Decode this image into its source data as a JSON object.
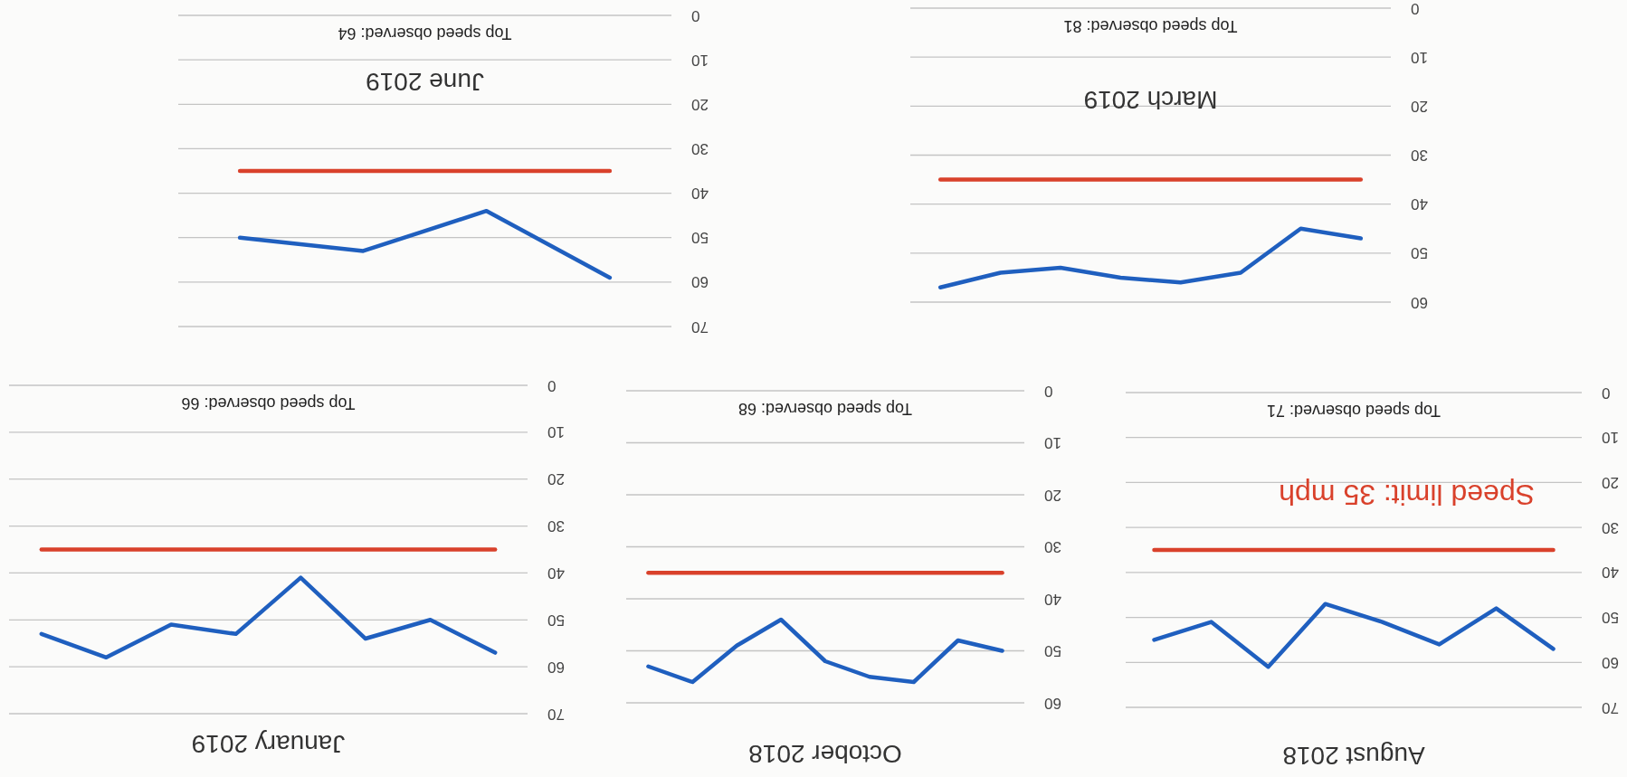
{
  "chart_data": [
    {
      "type": "line",
      "title": "June 2019",
      "categories": [
        null,
        null,
        null,
        null
      ],
      "series": [
        {
          "color": "#1f5fbf",
          "values": [
            50,
            53,
            44,
            59
          ]
        }
      ],
      "ylim": [
        70,
        0
      ],
      "yticks": [
        0,
        10,
        20,
        30,
        40,
        50,
        60,
        70
      ],
      "grid": "y",
      "tick_labels": "y",
      "ref_lines": [
        {
          "axis": "y",
          "value": 35,
          "color": "#d9412b"
        }
      ],
      "annotations": [
        "Top speed observed: 64"
      ]
    },
    {
      "type": "line",
      "title": "March 2019",
      "categories": [
        null,
        null,
        null,
        null,
        null,
        null,
        null,
        null
      ],
      "series": [
        {
          "color": "#1f5fbf",
          "values": [
            57,
            54,
            53,
            55,
            56,
            54,
            45,
            47
          ]
        }
      ],
      "ylim": [
        60,
        0
      ],
      "yticks": [
        0,
        10,
        20,
        30,
        40,
        50,
        60
      ],
      "grid": "y",
      "tick_labels": "y",
      "ref_lines": [
        {
          "axis": "y",
          "value": 35,
          "color": "#d9412b"
        }
      ],
      "annotations": [
        "Top speed observed: 81"
      ]
    },
    {
      "type": "line",
      "title": "January 2019",
      "categories": [
        null,
        null,
        null,
        null,
        null,
        null,
        null,
        null
      ],
      "series": [
        {
          "color": "#1f5fbf",
          "values": [
            53,
            58,
            51,
            53,
            41,
            54,
            50,
            57
          ]
        }
      ],
      "ylim": [
        70,
        0
      ],
      "yticks": [
        0,
        10,
        20,
        30,
        40,
        50,
        60,
        70
      ],
      "grid": "y",
      "tick_labels": "y",
      "ref_lines": [
        {
          "axis": "y",
          "value": 35,
          "color": "#d9412b"
        }
      ],
      "annotations": [
        "Top speed observed: 66"
      ]
    },
    {
      "type": "line",
      "title": "October 2018",
      "categories": [
        null,
        null,
        null,
        null,
        null,
        null,
        null,
        null,
        null
      ],
      "series": [
        {
          "color": "#1f5fbf",
          "values": [
            53,
            56,
            49,
            44,
            52,
            55,
            56,
            48,
            50
          ]
        }
      ],
      "ylim": [
        60,
        0
      ],
      "yticks": [
        0,
        10,
        20,
        30,
        40,
        50,
        60
      ],
      "grid": "y",
      "tick_labels": "y",
      "ref_lines": [
        {
          "axis": "y",
          "value": 35,
          "color": "#d9412b"
        }
      ],
      "annotations": [
        "Top speed observed: 68"
      ]
    },
    {
      "type": "line",
      "title": "August 2018",
      "categories": [
        null,
        null,
        null,
        null,
        null,
        null,
        null,
        null
      ],
      "series": [
        {
          "color": "#1f5fbf",
          "values": [
            55,
            51,
            61,
            47,
            51,
            56,
            48,
            57
          ]
        }
      ],
      "ylim": [
        70,
        0
      ],
      "yticks": [
        0,
        10,
        20,
        30,
        40,
        50,
        60,
        70
      ],
      "grid": "y",
      "tick_labels": "y",
      "ref_lines": [
        {
          "axis": "y",
          "value": 35,
          "label": "Speed limit: 35 mph",
          "color": "#d9412b"
        }
      ],
      "annotations": [
        "Top speed observed: 71"
      ]
    }
  ]
}
